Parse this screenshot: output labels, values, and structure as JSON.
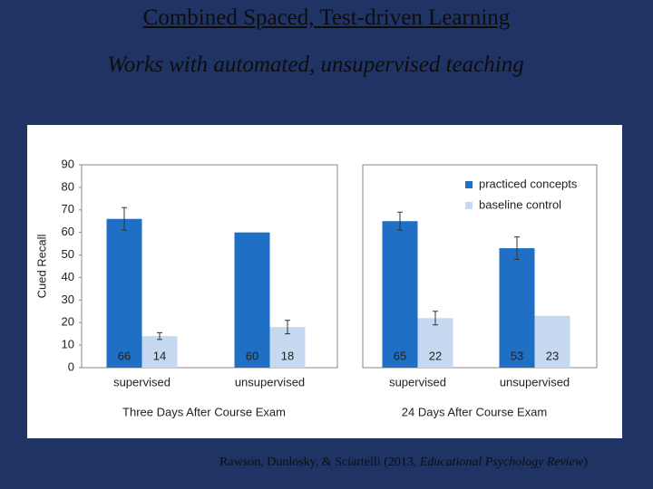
{
  "title": "Combined Spaced, Test-driven Learning ",
  "subtitle": "Works with automated, unsupervised teaching",
  "citation": {
    "before": "Rawson, Dunlosky, & Sciartelli (2013, ",
    "journal": "Educational Psychology Review",
    "after": ")"
  },
  "chart_data": [
    {
      "type": "bar",
      "ylabel": "Cued Recall",
      "xlabel": "Three Days After Course Exam",
      "categories": [
        "supervised",
        "unsupervised"
      ],
      "series": [
        {
          "color": "#1f6fc5",
          "values": [
            66,
            60
          ],
          "errors": [
            5,
            null
          ]
        },
        {
          "color": "#c6d9f1",
          "values": [
            14,
            18
          ],
          "errors": [
            1.5,
            3
          ]
        }
      ],
      "ylim": [
        0,
        90
      ],
      "yticks": [
        0,
        10,
        20,
        30,
        40,
        50,
        60,
        70,
        80,
        90
      ]
    },
    {
      "type": "bar",
      "xlabel": "24 Days After Course Exam",
      "categories": [
        "supervised",
        "unsupervised"
      ],
      "series": [
        {
          "name": "practiced concepts",
          "color": "#1f6fc5",
          "values": [
            65,
            53
          ],
          "errors": [
            4,
            5
          ]
        },
        {
          "name": "baseline control",
          "color": "#c6d9f1",
          "values": [
            22,
            23
          ],
          "errors": [
            3,
            null
          ]
        }
      ],
      "ylim": [
        0,
        90
      ],
      "legend": "upper right"
    }
  ]
}
